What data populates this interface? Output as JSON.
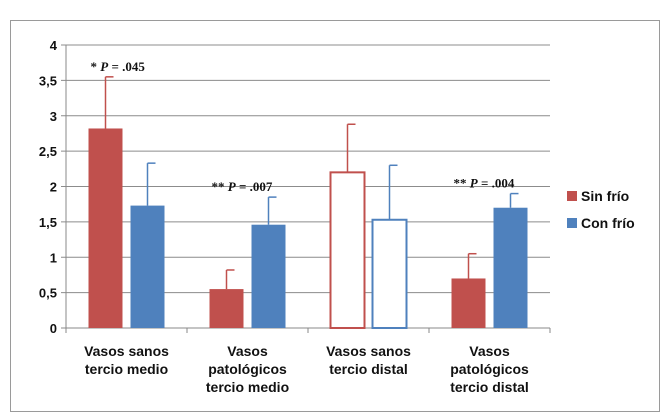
{
  "chart_data": {
    "type": "bar",
    "categories": [
      "Vasos sanos\ntercio medio",
      "Vasos\npatológicos\ntercio medio",
      "Vasos sanos\ntercio distal",
      "Vasos\npatológicos\ntercio distal"
    ],
    "series": [
      {
        "name": "Sin frío",
        "color": "#c0504d",
        "values": [
          2.82,
          0.55,
          2.2,
          0.7
        ],
        "errors": [
          0.73,
          0.27,
          0.68,
          0.35
        ],
        "hollow": [
          false,
          false,
          true,
          false
        ]
      },
      {
        "name": "Con frío",
        "color": "#4f81bd",
        "values": [
          1.73,
          1.46,
          1.53,
          1.7
        ],
        "errors": [
          0.6,
          0.39,
          0.77,
          0.2
        ],
        "hollow": [
          false,
          false,
          true,
          false
        ]
      }
    ],
    "annotations": [
      {
        "category": 0,
        "stars": "*",
        "p": "P",
        "text": " = .045"
      },
      {
        "category": 1,
        "stars": "**",
        "p": "P",
        "text": " = .007"
      },
      {
        "category": 3,
        "stars": "**",
        "p": "P",
        "text": " = .004"
      }
    ],
    "y_ticks": [
      "0",
      "0,5",
      "1",
      "1,5",
      "2",
      "2,5",
      "3",
      "3,5",
      "4"
    ],
    "ylim": [
      0,
      4
    ],
    "grid": true,
    "legend_position": "right",
    "title": "",
    "xlabel": "",
    "ylabel": ""
  }
}
